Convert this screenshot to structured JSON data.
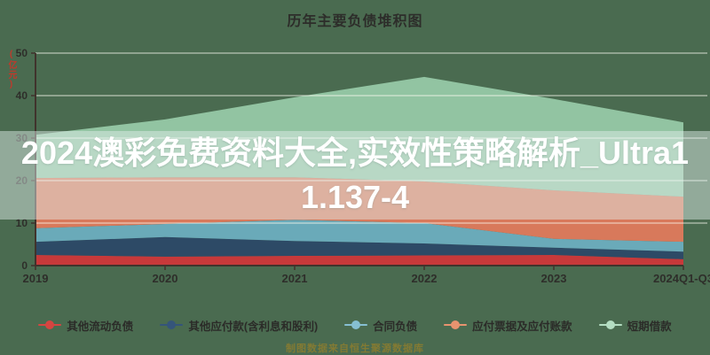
{
  "chart_data": {
    "type": "area",
    "stacked": true,
    "title": "历年主要负债堆积图",
    "unit_label": "(亿元)",
    "categories": [
      "2019",
      "2020",
      "2021",
      "2022",
      "2023",
      "2024Q1-Q3"
    ],
    "series": [
      {
        "name": "其他流动负债",
        "color": "#c7393a",
        "legend_color": "#d64541",
        "values": [
          2.5,
          2.1,
          2.3,
          2.4,
          2.5,
          1.5
        ]
      },
      {
        "name": "其他应付款(含利息和股利)",
        "color": "#2d4a66",
        "legend_color": "#35557a",
        "values": [
          3.1,
          4.6,
          3.5,
          2.8,
          1.7,
          1.8
        ]
      },
      {
        "name": "合同负债",
        "color": "#6aaab9",
        "legend_color": "#86bfd2",
        "values": [
          3.2,
          3.1,
          5.0,
          4.8,
          2.1,
          2.3
        ]
      },
      {
        "name": "应付票据及应付账款",
        "color": "#d8795b",
        "legend_color": "#e8936f",
        "values": [
          11.8,
          11.0,
          10.0,
          9.8,
          11.4,
          10.6
        ]
      },
      {
        "name": "短期借款",
        "color": "#92c4a2",
        "legend_color": "#b4ddc2",
        "values": [
          10.2,
          13.6,
          18.8,
          24.6,
          21.5,
          17.5
        ]
      }
    ],
    "totals": [
      30.8,
      34.4,
      39.6,
      44.4,
      39.2,
      33.7
    ],
    "ylim": [
      0,
      50
    ],
    "yticks": [
      0,
      10,
      20,
      30,
      40,
      50
    ],
    "grid": true,
    "legend_position": "bottom",
    "background_color": "#4a6b50",
    "axis_color": "#40332c",
    "gridline_color": "rgba(250,250,240,0.8)",
    "tick_label_color": "#2e2e2a"
  },
  "overlay": {
    "text": "2024澳彩免费资料大全,实效性策略解析_Ultra11.137-4"
  },
  "watermark": {
    "text": "制图数据来自恒生聚源数据库"
  }
}
